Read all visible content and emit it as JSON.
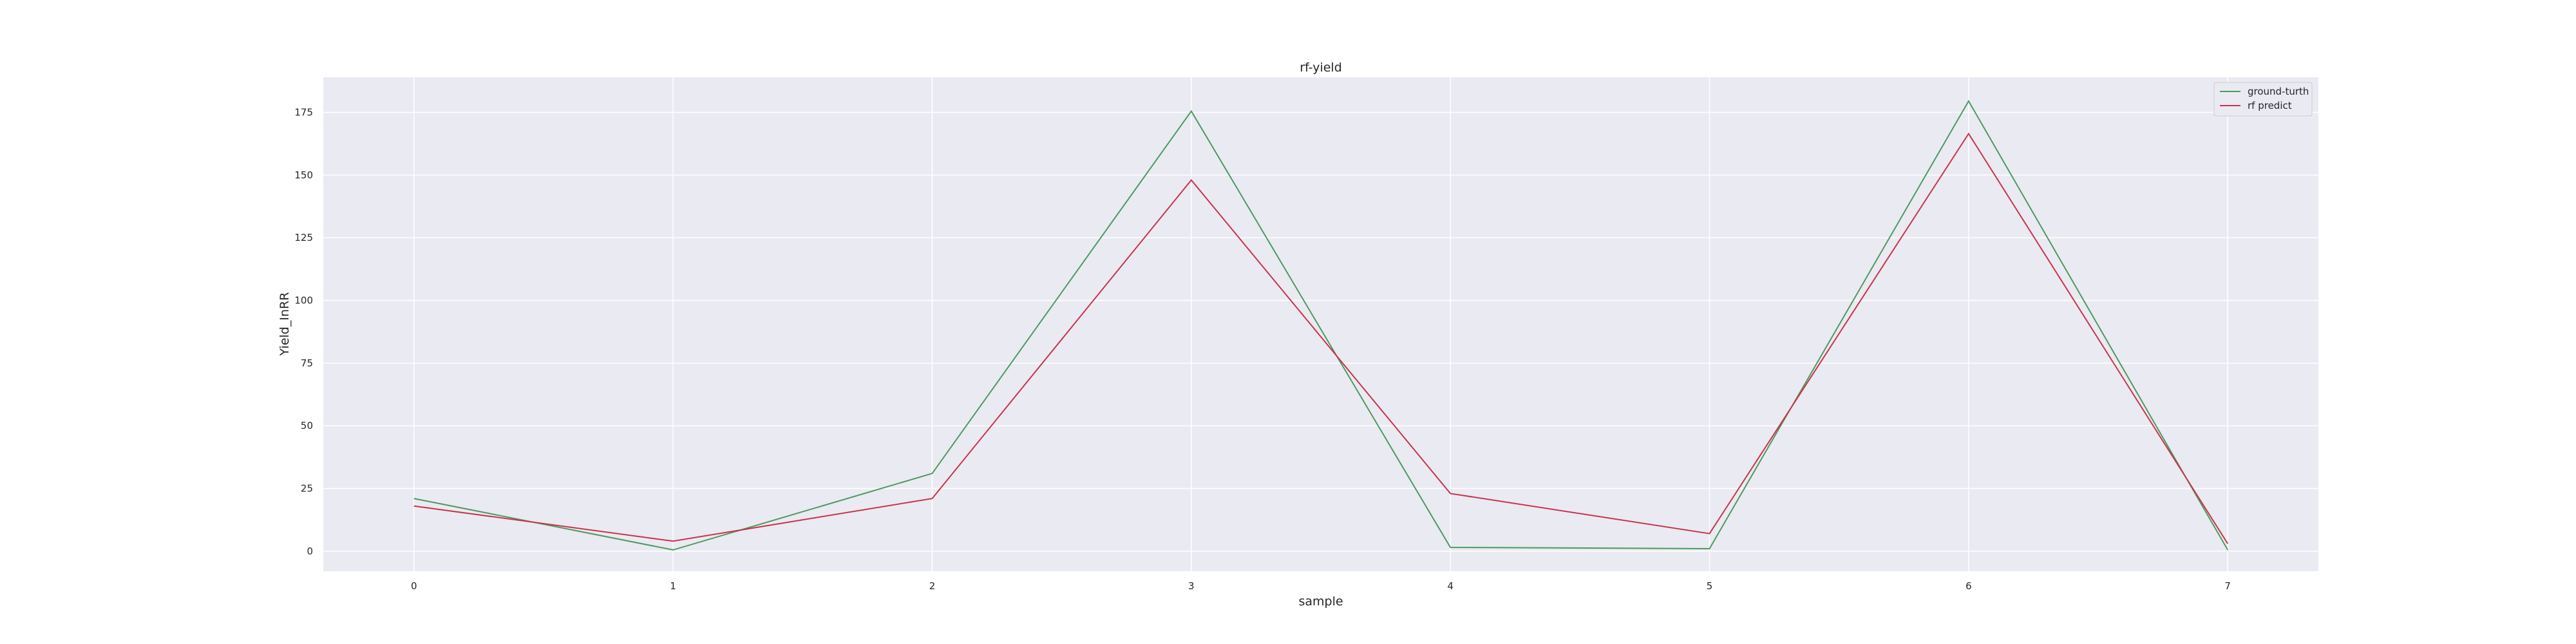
{
  "chart_data": {
    "type": "line",
    "title": "rf-yield",
    "xlabel": "sample",
    "ylabel": "Yield_InRR",
    "x": [
      0,
      1,
      2,
      3,
      4,
      5,
      6,
      7
    ],
    "xticks": [
      "0",
      "1",
      "2",
      "3",
      "4",
      "5",
      "6",
      "7"
    ],
    "xlim": [
      -0.35,
      7.35
    ],
    "yticks": [
      "0",
      "25",
      "50",
      "75",
      "100",
      "125",
      "150",
      "175"
    ],
    "ylim": [
      -8,
      189
    ],
    "grid": true,
    "legend_position": "top-right",
    "series": [
      {
        "name": "ground-turth",
        "color": "#4c9a5f",
        "values": [
          21,
          0.5,
          31,
          175.5,
          1.5,
          1,
          179.5,
          0.5
        ]
      },
      {
        "name": "rf predict",
        "color": "#c8344a",
        "values": [
          18,
          4,
          21,
          148,
          23,
          7,
          166.5,
          3
        ]
      }
    ]
  }
}
